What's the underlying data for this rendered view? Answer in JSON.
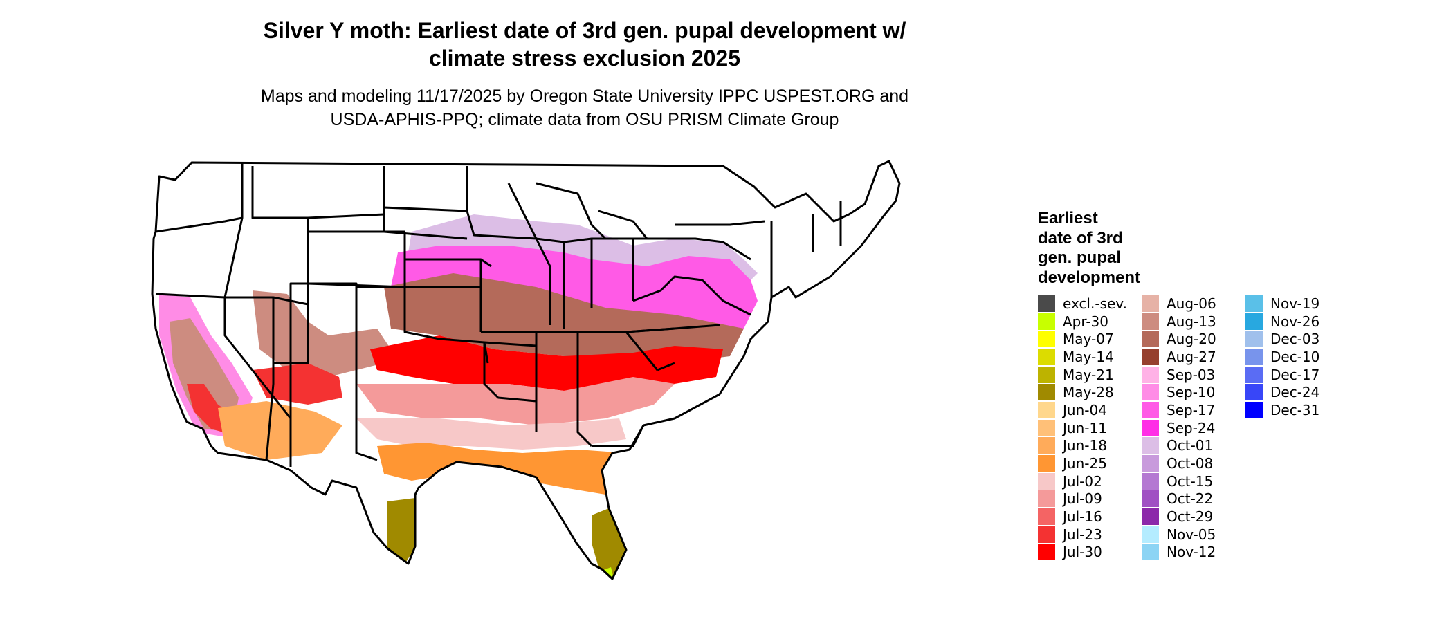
{
  "title_line1": "Silver Y moth: Earliest date of 3rd gen. pupal development w/",
  "title_line2": "climate stress exclusion 2025",
  "subtitle_line1": "Maps and modeling 11/17/2025 by Oregon State University IPPC USPEST.ORG and",
  "subtitle_line2": "USDA-APHIS-PPQ; climate data from OSU PRISM Climate Group",
  "legend": {
    "title_lines": [
      "Earliest",
      "date of 3rd",
      "gen. pupal",
      "development"
    ],
    "columns": [
      [
        {
          "label": "excl.-sev.",
          "color": "#4a4a4a"
        },
        {
          "label": "Apr-30",
          "color": "#c8ff00"
        },
        {
          "label": "May-07",
          "color": "#ffff00"
        },
        {
          "label": "May-14",
          "color": "#dcdc00"
        },
        {
          "label": "May-21",
          "color": "#bdb300"
        },
        {
          "label": "May-28",
          "color": "#a08a00"
        },
        {
          "label": "Jun-04",
          "color": "#ffd78c"
        },
        {
          "label": "Jun-11",
          "color": "#ffc078"
        },
        {
          "label": "Jun-18",
          "color": "#ffab5a"
        },
        {
          "label": "Jun-25",
          "color": "#ff9633"
        },
        {
          "label": "Jul-02",
          "color": "#f7c8c8"
        },
        {
          "label": "Jul-09",
          "color": "#f49a9a"
        },
        {
          "label": "Jul-16",
          "color": "#f46464"
        },
        {
          "label": "Jul-23",
          "color": "#f43232"
        },
        {
          "label": "Jul-30",
          "color": "#ff0000"
        }
      ],
      [
        {
          "label": "Aug-06",
          "color": "#e6b2a6"
        },
        {
          "label": "Aug-13",
          "color": "#cd8c80"
        },
        {
          "label": "Aug-20",
          "color": "#b46a5a"
        },
        {
          "label": "Aug-27",
          "color": "#96402e"
        },
        {
          "label": "Sep-03",
          "color": "#ffb2e6"
        },
        {
          "label": "Sep-10",
          "color": "#ff8ce6"
        },
        {
          "label": "Sep-17",
          "color": "#ff5ae6"
        },
        {
          "label": "Sep-24",
          "color": "#ff2ee6"
        },
        {
          "label": "Oct-01",
          "color": "#dcbee6"
        },
        {
          "label": "Oct-08",
          "color": "#c89adc"
        },
        {
          "label": "Oct-15",
          "color": "#b478d2"
        },
        {
          "label": "Oct-22",
          "color": "#a050c3"
        },
        {
          "label": "Oct-29",
          "color": "#8c28aa"
        },
        {
          "label": "Nov-05",
          "color": "#b4ecff"
        },
        {
          "label": "Nov-12",
          "color": "#8cd4f4"
        }
      ],
      [
        {
          "label": "Nov-19",
          "color": "#5ac0e8"
        },
        {
          "label": "Nov-26",
          "color": "#28a8e0"
        },
        {
          "label": "Dec-03",
          "color": "#a0c0ec"
        },
        {
          "label": "Dec-10",
          "color": "#7894ec"
        },
        {
          "label": "Dec-17",
          "color": "#5a6cf4"
        },
        {
          "label": "Dec-24",
          "color": "#3846f8"
        },
        {
          "label": "Dec-31",
          "color": "#0000ff"
        }
      ]
    ]
  }
}
